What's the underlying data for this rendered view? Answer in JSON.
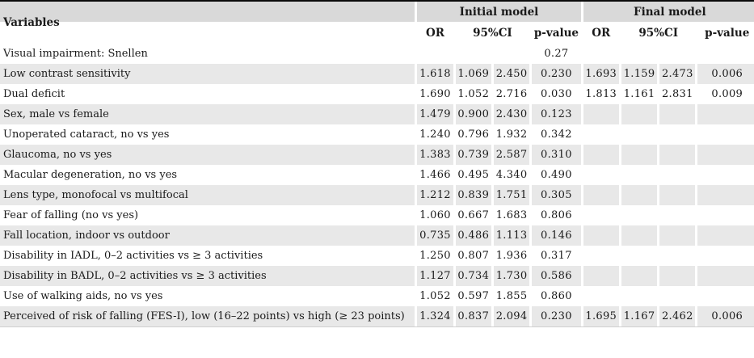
{
  "table": {
    "header": {
      "variables_label": "Variables",
      "group_initial": "Initial model",
      "group_final": "Final model",
      "sub_or": "OR",
      "sub_ci": "95%CI",
      "sub_p": "p-value"
    },
    "colors": {
      "header_band_gray": "#d9d9d9",
      "row_stripe_gray": "#e8e8e8",
      "top_rule": "#0a0a0a",
      "bottom_rule": "#cfcfcf",
      "text": "#1a1a1a"
    },
    "rows": [
      {
        "variable": "Visual impairment: Snellen",
        "cells": [
          "",
          "",
          "",
          "0.27",
          "",
          "",
          "",
          ""
        ]
      },
      {
        "variable": "Low contrast sensitivity",
        "cells": [
          "1.618",
          "1.069",
          "2.450",
          "0.230",
          "1.693",
          "1.159",
          "2.473",
          "0.006"
        ]
      },
      {
        "variable": "Dual deficit",
        "cells": [
          "1.690",
          "1.052",
          "2.716",
          "0.030",
          "1.813",
          "1.161",
          "2.831",
          "0.009"
        ]
      },
      {
        "variable": "Sex, male vs female",
        "cells": [
          "1.479",
          "0.900",
          "2.430",
          "0.123",
          "",
          "",
          "",
          ""
        ]
      },
      {
        "variable": "Unoperated cataract, no vs yes",
        "cells": [
          "1.240",
          "0.796",
          "1.932",
          "0.342",
          "",
          "",
          "",
          ""
        ]
      },
      {
        "variable": "Glaucoma, no vs yes",
        "cells": [
          "1.383",
          "0.739",
          "2.587",
          "0.310",
          "",
          "",
          "",
          ""
        ]
      },
      {
        "variable": "Macular degeneration, no vs yes",
        "cells": [
          "1.466",
          "0.495",
          "4.340",
          "0.490",
          "",
          "",
          "",
          ""
        ]
      },
      {
        "variable": "Lens type, monofocal vs multifocal",
        "cells": [
          "1.212",
          "0.839",
          "1.751",
          "0.305",
          "",
          "",
          "",
          ""
        ]
      },
      {
        "variable": "Fear of falling (no vs yes)",
        "cells": [
          "1.060",
          "0.667",
          "1.683",
          "0.806",
          "",
          "",
          "",
          ""
        ]
      },
      {
        "variable": "Fall location, indoor vs outdoor",
        "cells": [
          "0.735",
          "0.486",
          "1.113",
          "0.146",
          "",
          "",
          "",
          ""
        ]
      },
      {
        "variable": "Disability in IADL, 0–2 activities vs ≥ 3 activities",
        "cells": [
          "1.250",
          "0.807",
          "1.936",
          "0.317",
          "",
          "",
          "",
          ""
        ]
      },
      {
        "variable": "Disability in BADL, 0–2 activities vs ≥ 3 activities",
        "cells": [
          "1.127",
          "0.734",
          "1.730",
          "0.586",
          "",
          "",
          "",
          ""
        ]
      },
      {
        "variable": "Use of walking aids, no vs yes",
        "cells": [
          "1.052",
          "0.597",
          "1.855",
          "0.860",
          "",
          "",
          "",
          ""
        ]
      },
      {
        "variable": "Perceived of risk of falling (FES-I), low (16–22 points) vs high (≥ 23 points)",
        "cells": [
          "1.324",
          "0.837",
          "2.094",
          "0.230",
          "1.695",
          "1.167",
          "2.462",
          "0.006"
        ]
      }
    ]
  }
}
